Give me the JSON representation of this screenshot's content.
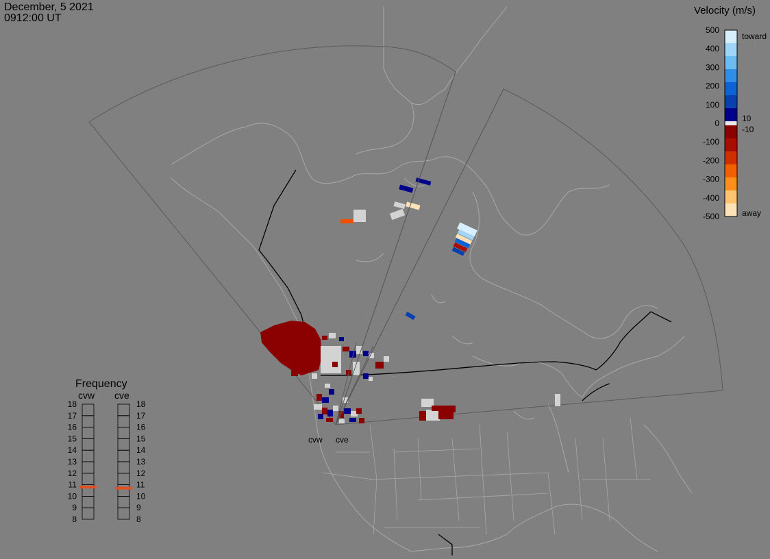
{
  "header": {
    "date": "December, 5 2021",
    "time": "0912:00 UT"
  },
  "velocity_scale": {
    "title": "Velocity (m/s)",
    "ticks": [
      "500",
      "400",
      "300",
      "200",
      "100",
      "0",
      "-100",
      "-200",
      "-300",
      "-400",
      "-500"
    ],
    "side_labels": {
      "toward": "toward",
      "away": "away",
      "upper_gap": "10",
      "lower_gap": "-10"
    },
    "colors": [
      "#d7eefc",
      "#9fd6f8",
      "#6bbcf2",
      "#2f8fe8",
      "#0d63d6",
      "#0a3fb0",
      "#00008b",
      "#8b0000",
      "#a80e00",
      "#d03000",
      "#f06000",
      "#ff8f1a",
      "#ffc56e",
      "#ffe1b8"
    ]
  },
  "frequency_panel": {
    "title": "Frequency",
    "radars": [
      "cvw",
      "cve"
    ],
    "ticks": [
      "18",
      "17",
      "16",
      "15",
      "14",
      "13",
      "12",
      "11",
      "10",
      "9",
      "8"
    ],
    "frequency_mhz": {
      "cvw": 10.8,
      "cve": 10.7
    },
    "marker_color": "#e05020"
  },
  "radar_labels": [
    "cvw",
    "cve"
  ],
  "colors": {
    "background": "#808080",
    "land_outline": "#a8a8a8",
    "border": "#000000",
    "fov": "#5a5a5a",
    "ground_scatter": "#d3d3d3"
  }
}
